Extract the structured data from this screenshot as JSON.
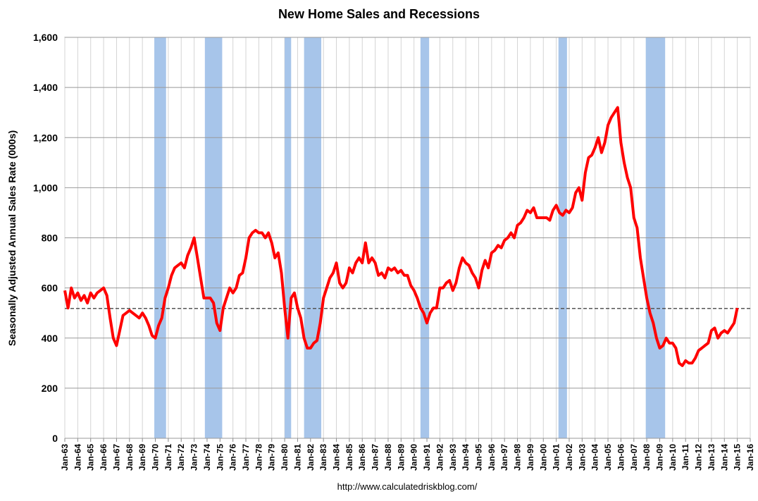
{
  "chart_data": {
    "type": "line",
    "title": "New Home Sales and Recessions",
    "y_label": "Seasonally Adjusted Annual Sales Rate (000s)",
    "source": "http://www.calculatedriskblog.com/",
    "xlim": [
      1963,
      2016
    ],
    "xticks": [
      {
        "value": 1963,
        "label": "Jan-63"
      },
      {
        "value": 1964,
        "label": "Jan-64"
      },
      {
        "value": 1965,
        "label": "Jan-65"
      },
      {
        "value": 1966,
        "label": "Jan-66"
      },
      {
        "value": 1967,
        "label": "Jan-67"
      },
      {
        "value": 1968,
        "label": "Jan-68"
      },
      {
        "value": 1969,
        "label": "Jan-69"
      },
      {
        "value": 1970,
        "label": "Jan-70"
      },
      {
        "value": 1971,
        "label": "Jan-71"
      },
      {
        "value": 1972,
        "label": "Jan-72"
      },
      {
        "value": 1973,
        "label": "Jan-73"
      },
      {
        "value": 1974,
        "label": "Jan-74"
      },
      {
        "value": 1975,
        "label": "Jan-75"
      },
      {
        "value": 1976,
        "label": "Jan-76"
      },
      {
        "value": 1977,
        "label": "Jan-77"
      },
      {
        "value": 1978,
        "label": "Jan-78"
      },
      {
        "value": 1979,
        "label": "Jan-79"
      },
      {
        "value": 1980,
        "label": "Jan-80"
      },
      {
        "value": 1981,
        "label": "Jan-81"
      },
      {
        "value": 1982,
        "label": "Jan-82"
      },
      {
        "value": 1983,
        "label": "Jan-83"
      },
      {
        "value": 1984,
        "label": "Jan-84"
      },
      {
        "value": 1985,
        "label": "Jan-85"
      },
      {
        "value": 1986,
        "label": "Jan-86"
      },
      {
        "value": 1987,
        "label": "Jan-87"
      },
      {
        "value": 1988,
        "label": "Jan-88"
      },
      {
        "value": 1989,
        "label": "Jan-89"
      },
      {
        "value": 1990,
        "label": "Jan-90"
      },
      {
        "value": 1991,
        "label": "Jan-91"
      },
      {
        "value": 1992,
        "label": "Jan-92"
      },
      {
        "value": 1993,
        "label": "Jan-93"
      },
      {
        "value": 1994,
        "label": "Jan-94"
      },
      {
        "value": 1995,
        "label": "Jan-95"
      },
      {
        "value": 1996,
        "label": "Jan-96"
      },
      {
        "value": 1997,
        "label": "Jan-97"
      },
      {
        "value": 1998,
        "label": "Jan-98"
      },
      {
        "value": 1999,
        "label": "Jan-99"
      },
      {
        "value": 2000,
        "label": "Jan-00"
      },
      {
        "value": 2001,
        "label": "Jan-01"
      },
      {
        "value": 2002,
        "label": "Jan-02"
      },
      {
        "value": 2003,
        "label": "Jan-03"
      },
      {
        "value": 2004,
        "label": "Jan-04"
      },
      {
        "value": 2005,
        "label": "Jan-05"
      },
      {
        "value": 2006,
        "label": "Jan-06"
      },
      {
        "value": 2007,
        "label": "Jan-07"
      },
      {
        "value": 2008,
        "label": "Jan-08"
      },
      {
        "value": 2009,
        "label": "Jan-09"
      },
      {
        "value": 2010,
        "label": "Jan-10"
      },
      {
        "value": 2011,
        "label": "Jan-11"
      },
      {
        "value": 2012,
        "label": "Jan-12"
      },
      {
        "value": 2013,
        "label": "Jan-13"
      },
      {
        "value": 2014,
        "label": "Jan-14"
      },
      {
        "value": 2015,
        "label": "Jan-15"
      },
      {
        "value": 2016,
        "label": "Jan-16"
      }
    ],
    "ylim": [
      0,
      1600
    ],
    "yticks": [
      0,
      200,
      400,
      600,
      800,
      {
        "value": 1000,
        "label": "1,000"
      },
      {
        "value": 1200,
        "label": "1,200"
      },
      {
        "value": 1400,
        "label": "1,400"
      },
      {
        "value": 1600,
        "label": "1,600"
      }
    ],
    "grid": true,
    "recession_color": "#a7c5ea",
    "recessions": [
      [
        1969.92,
        1970.83
      ],
      [
        1973.83,
        1975.17
      ],
      [
        1980.0,
        1980.5
      ],
      [
        1981.5,
        1982.83
      ],
      [
        1990.5,
        1991.17
      ],
      [
        2001.17,
        2001.83
      ],
      [
        2007.92,
        2009.42
      ]
    ],
    "reference_line": 518,
    "x": [
      1963,
      1963.25,
      1963.5,
      1963.75,
      1964,
      1964.25,
      1964.5,
      1964.75,
      1965,
      1965.25,
      1965.5,
      1965.75,
      1966,
      1966.25,
      1966.5,
      1966.75,
      1967,
      1967.25,
      1967.5,
      1967.75,
      1968,
      1968.25,
      1968.5,
      1968.75,
      1969,
      1969.25,
      1969.5,
      1969.75,
      1970,
      1970.25,
      1970.5,
      1970.75,
      1971,
      1971.25,
      1971.5,
      1971.75,
      1972,
      1972.25,
      1972.5,
      1972.75,
      1973,
      1973.25,
      1973.5,
      1973.75,
      1974,
      1974.25,
      1974.5,
      1974.75,
      1975,
      1975.25,
      1975.5,
      1975.75,
      1976,
      1976.25,
      1976.5,
      1976.75,
      1977,
      1977.25,
      1977.5,
      1977.75,
      1978,
      1978.25,
      1978.5,
      1978.75,
      1979,
      1979.25,
      1979.5,
      1979.75,
      1980,
      1980.25,
      1980.5,
      1980.75,
      1981,
      1981.25,
      1981.5,
      1981.75,
      1982,
      1982.25,
      1982.5,
      1982.75,
      1983,
      1983.25,
      1983.5,
      1983.75,
      1984,
      1984.25,
      1984.5,
      1984.75,
      1985,
      1985.25,
      1985.5,
      1985.75,
      1986,
      1986.25,
      1986.5,
      1986.75,
      1987,
      1987.25,
      1987.5,
      1987.75,
      1988,
      1988.25,
      1988.5,
      1988.75,
      1989,
      1989.25,
      1989.5,
      1989.75,
      1990,
      1990.25,
      1990.5,
      1990.75,
      1991,
      1991.25,
      1991.5,
      1991.75,
      1992,
      1992.25,
      1992.5,
      1992.75,
      1993,
      1993.25,
      1993.5,
      1993.75,
      1994,
      1994.25,
      1994.5,
      1994.75,
      1995,
      1995.25,
      1995.5,
      1995.75,
      1996,
      1996.25,
      1996.5,
      1996.75,
      1997,
      1997.25,
      1997.5,
      1997.75,
      1998,
      1998.25,
      1998.5,
      1998.75,
      1999,
      1999.25,
      1999.5,
      1999.75,
      2000,
      2000.25,
      2000.5,
      2000.75,
      2001,
      2001.25,
      2001.5,
      2001.75,
      2002,
      2002.25,
      2002.5,
      2002.75,
      2003,
      2003.25,
      2003.5,
      2003.75,
      2004,
      2004.25,
      2004.5,
      2004.75,
      2005,
      2005.25,
      2005.5,
      2005.75,
      2006,
      2006.25,
      2006.5,
      2006.75,
      2007,
      2007.25,
      2007.5,
      2007.75,
      2008,
      2008.25,
      2008.5,
      2008.75,
      2009,
      2009.25,
      2009.5,
      2009.75,
      2010,
      2010.25,
      2010.5,
      2010.75,
      2011,
      2011.25,
      2011.5,
      2011.75,
      2012,
      2012.25,
      2012.5,
      2012.75,
      2013,
      2013.25,
      2013.5,
      2013.75,
      2014,
      2014.25,
      2014.5,
      2014.75,
      2015
    ],
    "series": [
      {
        "color": "#ff0000",
        "values": [
          590,
          520,
          600,
          560,
          580,
          550,
          570,
          540,
          580,
          560,
          580,
          590,
          600,
          570,
          480,
          400,
          370,
          430,
          490,
          500,
          510,
          500,
          490,
          480,
          500,
          480,
          450,
          410,
          400,
          450,
          480,
          560,
          600,
          650,
          680,
          690,
          700,
          680,
          730,
          760,
          800,
          720,
          640,
          560,
          560,
          560,
          540,
          460,
          430,
          520,
          560,
          600,
          580,
          600,
          650,
          660,
          720,
          800,
          820,
          830,
          820,
          820,
          800,
          820,
          780,
          720,
          740,
          660,
          520,
          400,
          560,
          580,
          520,
          480,
          400,
          360,
          360,
          380,
          390,
          460,
          560,
          600,
          640,
          660,
          700,
          620,
          600,
          620,
          680,
          660,
          700,
          720,
          700,
          780,
          700,
          720,
          700,
          650,
          660,
          640,
          680,
          670,
          680,
          660,
          670,
          650,
          650,
          610,
          590,
          560,
          520,
          500,
          460,
          500,
          520,
          520,
          600,
          600,
          620,
          630,
          590,
          620,
          680,
          720,
          700,
          690,
          660,
          640,
          600,
          670,
          710,
          680,
          740,
          750,
          770,
          760,
          790,
          800,
          820,
          800,
          850,
          860,
          880,
          910,
          900,
          920,
          880,
          880,
          880,
          880,
          870,
          910,
          930,
          900,
          890,
          910,
          900,
          920,
          980,
          1000,
          950,
          1060,
          1120,
          1130,
          1160,
          1200,
          1140,
          1180,
          1250,
          1280,
          1300,
          1320,
          1180,
          1100,
          1040,
          1000,
          880,
          840,
          720,
          640,
          560,
          500,
          460,
          400,
          360,
          370,
          400,
          380,
          380,
          360,
          300,
          290,
          310,
          300,
          300,
          320,
          350,
          360,
          370,
          380,
          430,
          440,
          400,
          420,
          430,
          420,
          440,
          460,
          520
        ]
      }
    ]
  }
}
